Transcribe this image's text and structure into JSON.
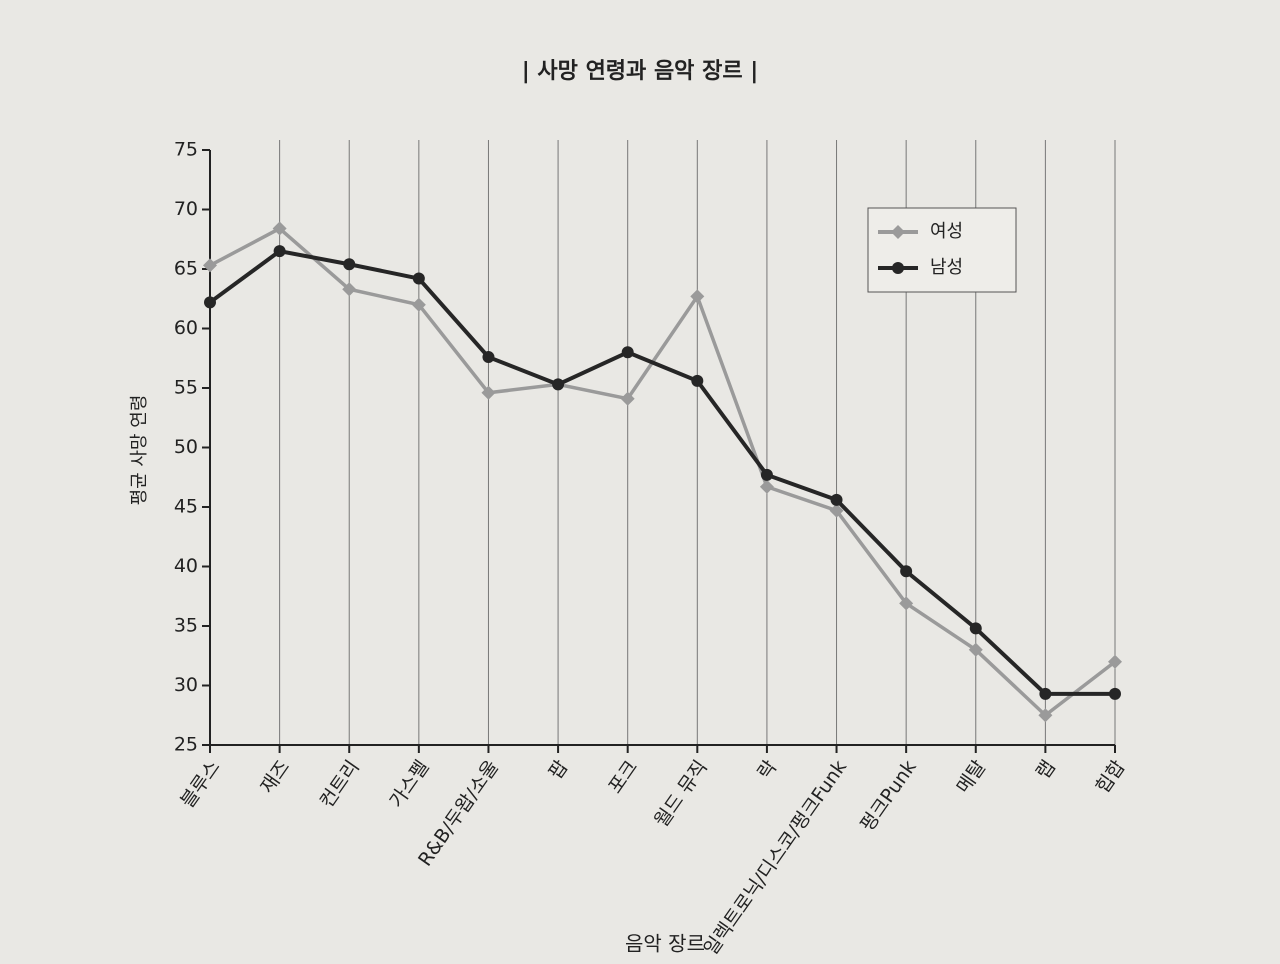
{
  "chart_data": {
    "type": "line",
    "title": "| 사망 연령과 음악 장르 |",
    "x_label": "음악 장르",
    "y_label": "평균 사망 연령",
    "categories": [
      "블루스",
      "재즈",
      "컨트리",
      "가스펠",
      "R&B/두왑/소울",
      "팝",
      "포크",
      "월드 뮤직",
      "락",
      "일렉트로닉/디스코/펑크Funk",
      "펑크Punk",
      "메탈",
      "랩",
      "힙합"
    ],
    "series": [
      {
        "name": "여성",
        "color": "#9a9a9a",
        "marker": "diamond",
        "values": [
          65.3,
          68.4,
          63.3,
          62.0,
          54.6,
          55.3,
          54.1,
          62.7,
          46.7,
          44.7,
          36.9,
          33.0,
          27.5,
          32.0
        ]
      },
      {
        "name": "남성",
        "color": "#262626",
        "marker": "circle",
        "values": [
          62.2,
          66.5,
          65.4,
          64.2,
          57.6,
          55.3,
          58.0,
          55.6,
          47.7,
          45.6,
          39.6,
          34.8,
          29.3,
          29.3
        ]
      }
    ],
    "ylim": [
      25,
      75
    ],
    "yticks": [
      25,
      30,
      35,
      40,
      45,
      50,
      55,
      60,
      65,
      70,
      75
    ],
    "grid": true,
    "legend": "upper right"
  }
}
